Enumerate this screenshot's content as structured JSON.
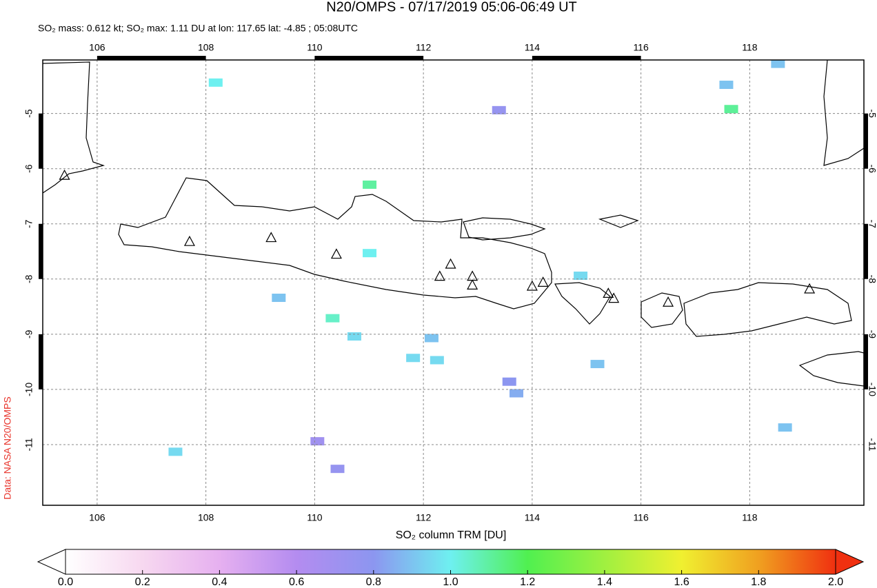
{
  "chart_data": {
    "type": "map",
    "title": "N20/OMPS - 07/17/2019 05:06-06:49 UT",
    "subtitle": "SO₂ mass: 0.612 kt; SO₂ max: 1.11 DU at lon: 117.65 lat: -4.85 ; 05:08UTC",
    "credit": "Data: NASA N20/OMPS",
    "colorbar_label": "SO₂ column TRM [DU]",
    "xlim": [
      105.0,
      120.1
    ],
    "ylim": [
      -12.1,
      -4.03
    ],
    "xticks": [
      106,
      108,
      110,
      112,
      114,
      116,
      118
    ],
    "yticks": [
      -5,
      -6,
      -7,
      -8,
      -9,
      -10,
      -11
    ],
    "grid": true,
    "clim": [
      0,
      2
    ],
    "cticks": [
      {
        "value": 0,
        "label": "0.0"
      },
      {
        "value": 0.2,
        "label": "0.2"
      },
      {
        "value": 0.4,
        "label": "0.4"
      },
      {
        "value": 0.6,
        "label": "0.6"
      },
      {
        "value": 0.8,
        "label": "0.8"
      },
      {
        "value": 1.0,
        "label": "1.0"
      },
      {
        "value": 1.2,
        "label": "1.2"
      },
      {
        "value": 1.4,
        "label": "1.4"
      },
      {
        "value": 1.6,
        "label": "1.6"
      },
      {
        "value": 1.8,
        "label": "1.8"
      },
      {
        "value": 2.0,
        "label": "2.0"
      }
    ],
    "colormap": [
      "#ffffff",
      "#f7d8f0",
      "#e6b0f0",
      "#b48cf0",
      "#8c96f0",
      "#6ef0f0",
      "#50f050",
      "#a0f040",
      "#f0f030",
      "#f0a020",
      "#f03010"
    ],
    "volcanoes": {
      "lon": [
        105.4,
        107.7,
        109.2,
        110.4,
        112.3,
        112.5,
        112.9,
        112.9,
        114.0,
        114.2,
        115.4,
        115.5,
        116.5,
        119.1
      ],
      "lat": [
        -6.13,
        -7.33,
        -7.26,
        -7.56,
        -7.96,
        -7.74,
        -7.96,
        -8.12,
        -8.14,
        -8.07,
        -8.27,
        -8.36,
        -8.43,
        -8.19
      ]
    },
    "cells": {
      "lon": [
        108.18,
        111.01,
        111.01,
        110.33,
        110.73,
        112.15,
        112.25,
        111.81,
        117.66,
        113.71,
        113.58,
        118.65,
        115.2,
        109.34,
        107.44,
        114.89,
        117.57,
        118.52,
        113.39,
        110.42,
        110.05
      ],
      "lat": [
        -4.44,
        -6.29,
        -7.53,
        -8.71,
        -9.04,
        -9.07,
        -9.47,
        -9.43,
        -4.92,
        -10.07,
        -9.86,
        -10.69,
        -9.54,
        -8.34,
        -11.13,
        -7.94,
        -4.48,
        -4.1,
        -4.94,
        -11.44,
        -10.94
      ],
      "values": [
        1.0,
        1.1,
        1.0,
        1.05,
        0.95,
        0.9,
        0.95,
        0.95,
        1.11,
        0.85,
        0.8,
        0.9,
        0.9,
        0.9,
        0.95,
        0.95,
        0.9,
        0.9,
        0.75,
        0.75,
        0.7
      ]
    }
  }
}
